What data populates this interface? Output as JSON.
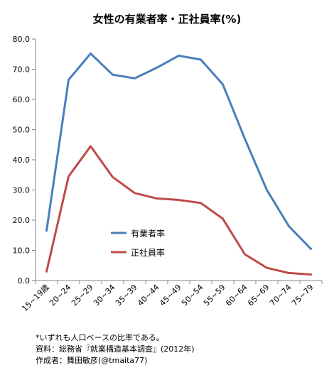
{
  "chart_data": {
    "type": "line",
    "title": "女性の有業者率・正社員率(%)",
    "xlabel": "",
    "ylabel": "",
    "ylim": [
      0,
      80
    ],
    "yticks": [
      "0.0",
      "10.0",
      "20.0",
      "30.0",
      "40.0",
      "50.0",
      "60.0",
      "70.0",
      "80.0"
    ],
    "grid": false,
    "legend_position": "bottom-center",
    "categories": [
      "15~19歳",
      "20~24",
      "25~29",
      "30~34",
      "35~39",
      "40~44",
      "45~49",
      "50~54",
      "55~59",
      "60~64",
      "65~69",
      "70~74",
      "75~79"
    ],
    "series": [
      {
        "name": "有業者率",
        "color": "#4a7ebb",
        "values": [
          16.5,
          66.5,
          75.2,
          68.2,
          67.0,
          70.5,
          74.5,
          73.2,
          65.0,
          47.0,
          30.0,
          18.0,
          10.5
        ]
      },
      {
        "name": "正社員率",
        "color": "#be4b48",
        "values": [
          3.0,
          34.5,
          44.5,
          34.3,
          29.0,
          27.2,
          26.7,
          25.7,
          20.5,
          8.7,
          4.2,
          2.5,
          2.0
        ]
      }
    ]
  },
  "notes": [
    "*いずれも人口ベースの比率である。",
    "資料：総務省『就業構造基本調査』(2012年)",
    "作成者：舞田敏彦(@tmaita77)"
  ]
}
